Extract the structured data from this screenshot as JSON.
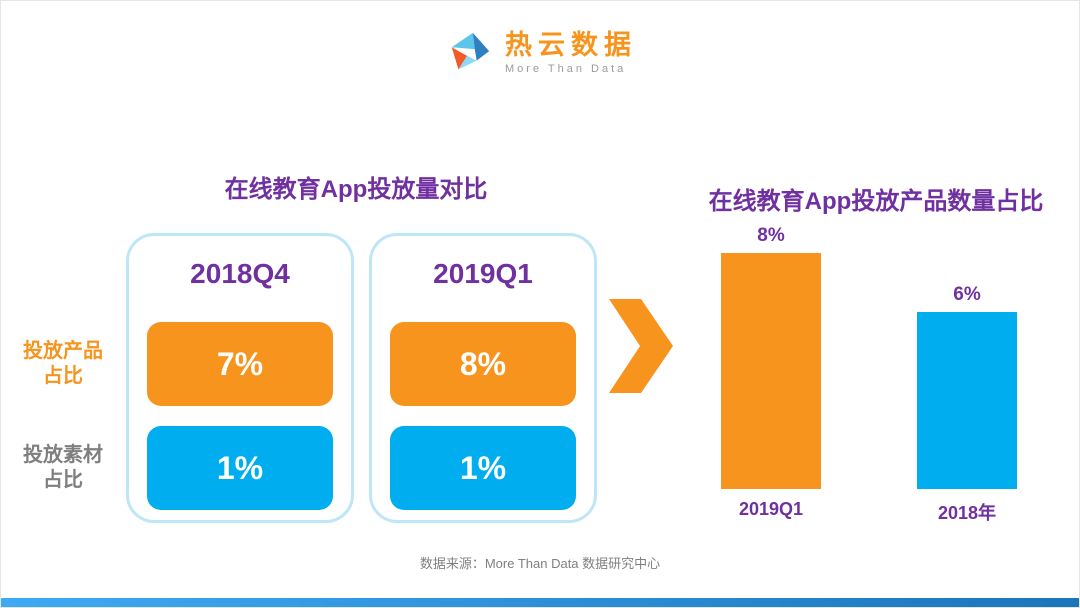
{
  "header": {
    "brand_name": "热云数据",
    "brand_tagline": "More Than Data"
  },
  "left_panel": {
    "title": "在线教育App投放量对比",
    "row_labels": [
      {
        "label": "投放产品\n占比"
      },
      {
        "label": "投放素材\n占比"
      }
    ],
    "cards": [
      {
        "period": "2018Q4",
        "product_share": "7%",
        "material_share": "1%"
      },
      {
        "period": "2019Q1",
        "product_share": "8%",
        "material_share": "1%"
      }
    ]
  },
  "right_panel": {
    "title": "在线教育App投放产品数量占比"
  },
  "chart_data": {
    "type": "bar",
    "title": "在线教育App投放产品数量占比",
    "categories": [
      "2019Q1",
      "2018年"
    ],
    "values": [
      8,
      6
    ],
    "value_labels": [
      "8%",
      "6%"
    ],
    "bar_colors": [
      "#f7941d",
      "#00aeef"
    ],
    "ylim": [
      0,
      8
    ],
    "grid": false,
    "legend": false,
    "xlabel": "",
    "ylabel": ""
  },
  "footer": {
    "source": "数据来源：More Than Data 数据研究中心"
  },
  "colors": {
    "orange": "#f7941d",
    "blue": "#00aeef",
    "purple": "#7030a0",
    "card_border": "#bfe6f8",
    "gray_text": "#7f7f7f"
  }
}
